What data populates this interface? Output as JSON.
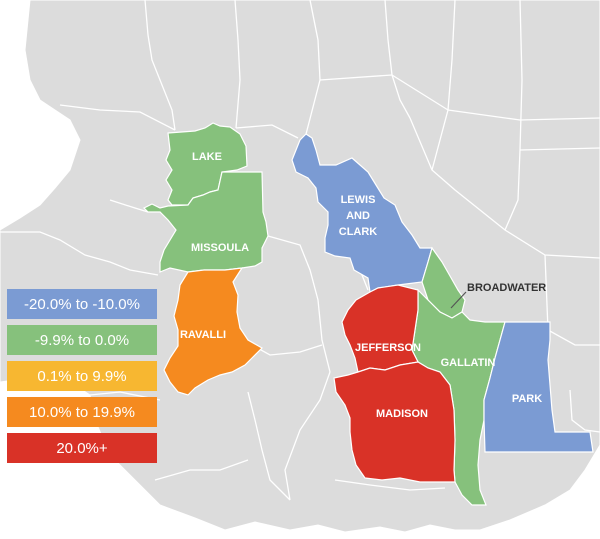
{
  "colors": {
    "background_region": "#dcdcdc",
    "county_border": "#ffffff",
    "blue": "#7b9bd3",
    "green": "#86c17c",
    "yellow": "#f7b731",
    "orange": "#f58a1f",
    "red": "#d93227"
  },
  "counties": {
    "lake": "LAKE",
    "missoula": "MISSOULA",
    "ravalli": "RAVALLI",
    "lewis_and_clark_1": "LEWIS",
    "lewis_and_clark_2": "AND",
    "lewis_and_clark_3": "CLARK",
    "broadwater": "BROADWATER",
    "jefferson": "JEFFERSON",
    "gallatin": "GALLATIN",
    "madison": "MADISON",
    "park": "PARK"
  },
  "legend": [
    {
      "label": "-20.0% to -10.0%",
      "color": "#7b9bd3"
    },
    {
      "label": "-9.9% to 0.0%",
      "color": "#86c17c"
    },
    {
      "label": "0.1% to 9.9%",
      "color": "#f7b731"
    },
    {
      "label": "10.0% to 19.9%",
      "color": "#f58a1f"
    },
    {
      "label": "20.0%+",
      "color": "#d93227"
    }
  ]
}
